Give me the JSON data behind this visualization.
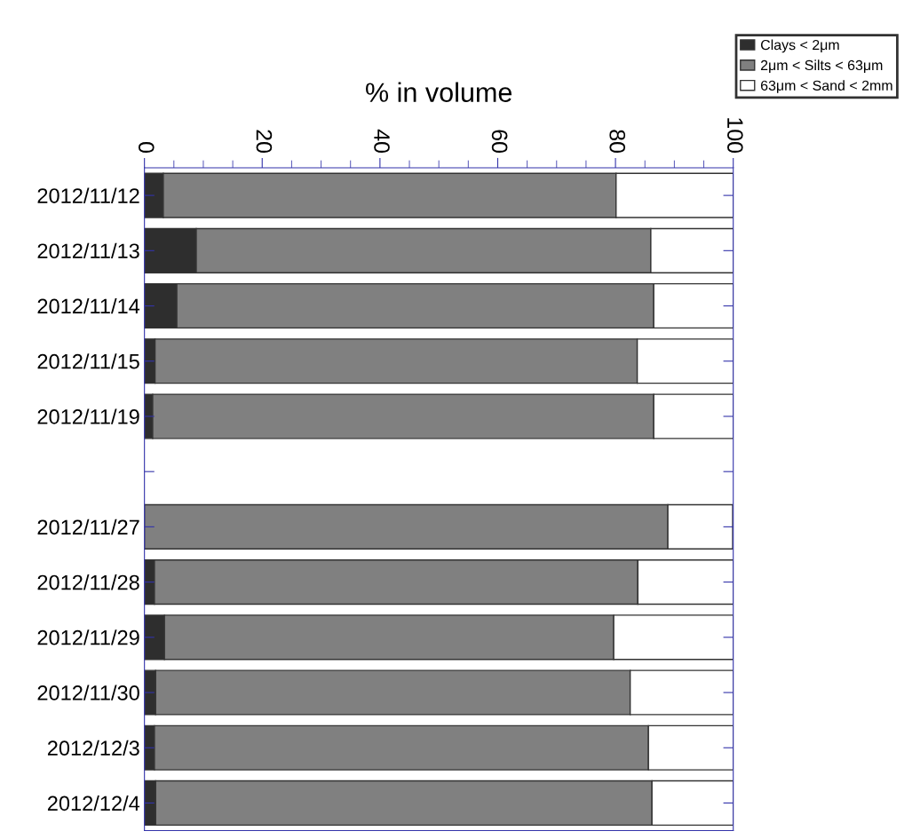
{
  "chart_data": {
    "type": "bar",
    "orientation": "horizontal",
    "stacked": true,
    "xlabel": "% in volume",
    "categories": [
      "2012/11/12",
      "2012/11/13",
      "2012/11/14",
      "2012/11/15",
      "2012/11/19",
      null,
      "2012/11/27",
      "2012/11/28",
      "2012/11/29",
      "2012/11/30",
      "2012/12/3",
      "2012/12/4"
    ],
    "series": [
      {
        "name": "Clays < 2μm",
        "color": "#2e2e2e",
        "values": [
          3.2,
          8.8,
          5.5,
          1.8,
          1.4,
          null,
          null,
          1.7,
          3.4,
          1.9,
          1.7,
          1.9
        ]
      },
      {
        "name": "2μm < Silts < 63μm",
        "color": "#808080",
        "values": [
          76.9,
          77.2,
          81.0,
          81.9,
          85.1,
          null,
          88.9,
          82.1,
          76.3,
          80.6,
          83.9,
          84.3
        ]
      },
      {
        "name": "63μm < Sand < 2mm",
        "color": "#ffffff",
        "values": [
          19.9,
          14.0,
          13.5,
          16.3,
          13.5,
          null,
          11.0,
          16.2,
          20.3,
          17.5,
          14.4,
          13.8
        ]
      }
    ],
    "xlim": [
      0,
      100
    ],
    "xticks": [
      0,
      20,
      40,
      60,
      80,
      100
    ],
    "legend": "top right"
  }
}
